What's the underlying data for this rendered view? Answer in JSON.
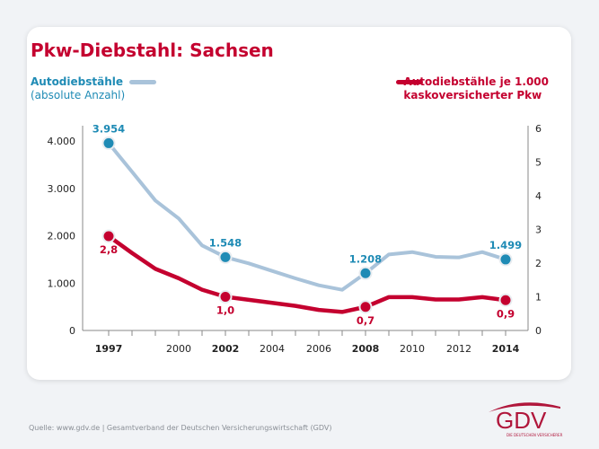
{
  "title": "Pkw-Diebstahl: Sachsen",
  "legend": {
    "left_line1": "Autodiebstähle",
    "left_line2": "(absolute Anzahl)",
    "right_line1": "Autodiebstähle je 1.000",
    "right_line2": "kaskoversicherter Pkw"
  },
  "source": "Quelle: www.gdv.de | Gesamtverband der Deutschen Versicherungswirtschaft (GDV)",
  "logo": {
    "text": "GDV",
    "subtitle": "DIE DEUTSCHEN VERSICHERER"
  },
  "chart_data": {
    "type": "line",
    "title": "Pkw-Diebstahl: Sachsen",
    "x": [
      1997,
      1998,
      1999,
      2000,
      2001,
      2002,
      2003,
      2004,
      2005,
      2006,
      2007,
      2008,
      2009,
      2010,
      2011,
      2012,
      2013,
      2014
    ],
    "x_tick_labels": [
      "1997",
      "2000",
      "2002",
      "2004",
      "2006",
      "2008",
      "2010",
      "2012",
      "2014"
    ],
    "x_tick_values": [
      1997,
      2000,
      2002,
      2004,
      2006,
      2008,
      2010,
      2012,
      2014
    ],
    "y_left": {
      "ylim": [
        0,
        4000
      ],
      "ticks": [
        0,
        1000,
        2000,
        3000,
        4000
      ],
      "tick_labels": [
        "0",
        "1.000",
        "2.000",
        "3.000",
        "4.000"
      ]
    },
    "y_right": {
      "ylim": [
        0,
        6
      ],
      "ticks": [
        0,
        1,
        2,
        3,
        4,
        5,
        6
      ],
      "tick_labels": [
        "0",
        "1",
        "2",
        "3",
        "4",
        "5",
        "6"
      ]
    },
    "grid": false,
    "series": [
      {
        "name": "Autodiebstähle (absolute Anzahl)",
        "axis": "left",
        "color": "#a9c3da",
        "marker_color": "#1f8bb5",
        "values": [
          3954,
          3350,
          2743,
          2364,
          1795,
          1548,
          1416,
          1257,
          1100,
          954,
          859,
          1208,
          1605,
          1655,
          1555,
          1542,
          1655,
          1499
        ],
        "labels": [
          {
            "x": 1997,
            "text": "3.954"
          },
          {
            "x": 2002,
            "text": "1.548"
          },
          {
            "x": 2008,
            "text": "1.208"
          },
          {
            "x": 2014,
            "text": "1.499"
          }
        ]
      },
      {
        "name": "Autodiebstähle je 1.000 kaskoversicherter Pkw",
        "axis": "right",
        "color": "#c4002f",
        "marker_color": "#c4002f",
        "values": [
          2.8,
          2.3,
          1.83,
          1.55,
          1.21,
          1.0,
          0.91,
          0.82,
          0.73,
          0.61,
          0.55,
          0.7,
          0.99,
          0.99,
          0.92,
          0.92,
          0.99,
          0.9
        ],
        "labels": [
          {
            "x": 1997,
            "text": "2,8"
          },
          {
            "x": 2002,
            "text": "1,0"
          },
          {
            "x": 2008,
            "text": "0,7"
          },
          {
            "x": 2014,
            "text": "0,9"
          }
        ]
      }
    ]
  }
}
